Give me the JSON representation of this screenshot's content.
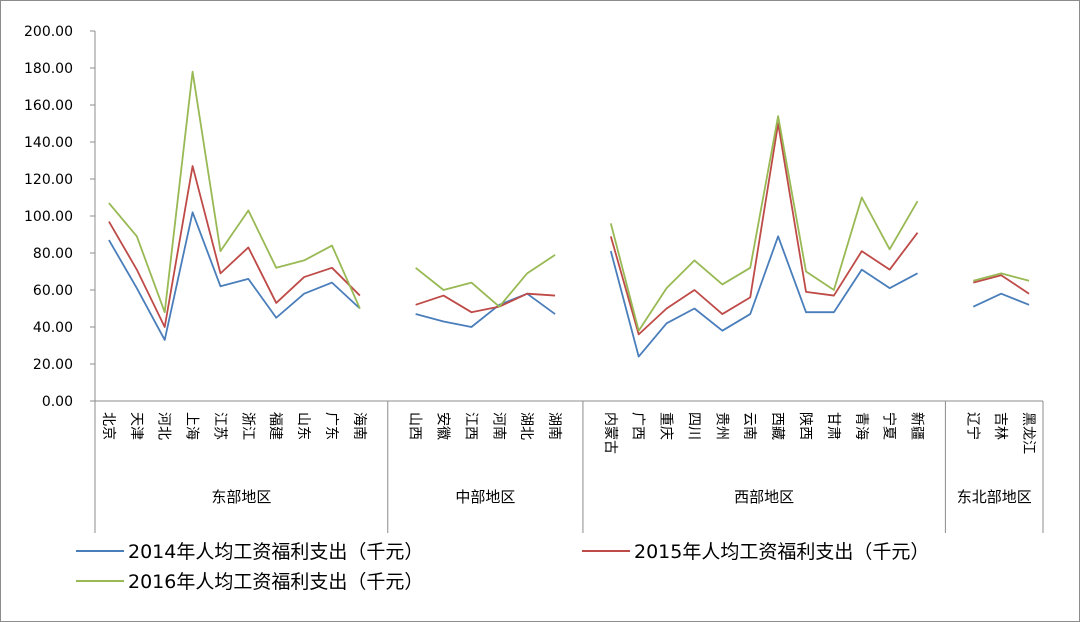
{
  "chart_data": {
    "type": "line",
    "ylim": [
      0,
      200
    ],
    "y_ticks": [
      "0.00",
      "20.00",
      "40.00",
      "60.00",
      "80.00",
      "100.00",
      "120.00",
      "140.00",
      "160.00",
      "180.00",
      "200.00"
    ],
    "grid": false,
    "legend_position": "bottom",
    "groups": [
      {
        "name": "东部地区",
        "categories": [
          "北京",
          "天津",
          "河北",
          "上海",
          "江苏",
          "浙江",
          "福建",
          "山东",
          "广东",
          "海南"
        ]
      },
      {
        "name": "中部地区",
        "categories": [
          "山西",
          "安徽",
          "江西",
          "河南",
          "湖北",
          "湖南"
        ]
      },
      {
        "name": "西部地区",
        "categories": [
          "内蒙古",
          "广西",
          "重庆",
          "四川",
          "贵州",
          "云南",
          "西藏",
          "陕西",
          "甘肃",
          "青海",
          "宁夏",
          "新疆"
        ]
      },
      {
        "name": "东北部地区",
        "categories": [
          "辽宁",
          "吉林",
          "黑龙江"
        ]
      }
    ],
    "series": [
      {
        "name": "2014年人均工资福利支出（千元）",
        "color": "#4a7ebb",
        "values": [
          [
            87,
            61,
            33,
            102,
            62,
            66,
            45,
            58,
            64,
            50
          ],
          [
            47,
            43,
            40,
            52,
            58,
            47
          ],
          [
            81,
            24,
            42,
            50,
            38,
            47,
            89,
            48,
            48,
            71,
            61,
            69
          ],
          [
            51,
            58,
            52
          ]
        ]
      },
      {
        "name": "2015年人均工资福利支出（千元）",
        "color": "#be4b48",
        "values": [
          [
            97,
            71,
            40,
            127,
            69,
            83,
            53,
            67,
            72,
            57
          ],
          [
            52,
            57,
            48,
            51,
            58,
            57
          ],
          [
            89,
            36,
            50,
            60,
            47,
            56,
            150,
            59,
            57,
            81,
            71,
            91
          ],
          [
            64,
            68,
            58
          ]
        ]
      },
      {
        "name": "2016年人均工资福利支出（千元）",
        "color": "#98b954",
        "values": [
          [
            107,
            89,
            48,
            178,
            81,
            103,
            72,
            76,
            84,
            50
          ],
          [
            72,
            60,
            64,
            51,
            69,
            79
          ],
          [
            96,
            38,
            61,
            76,
            63,
            72,
            154,
            70,
            60,
            110,
            82,
            108
          ],
          [
            65,
            69,
            65
          ]
        ]
      }
    ]
  }
}
